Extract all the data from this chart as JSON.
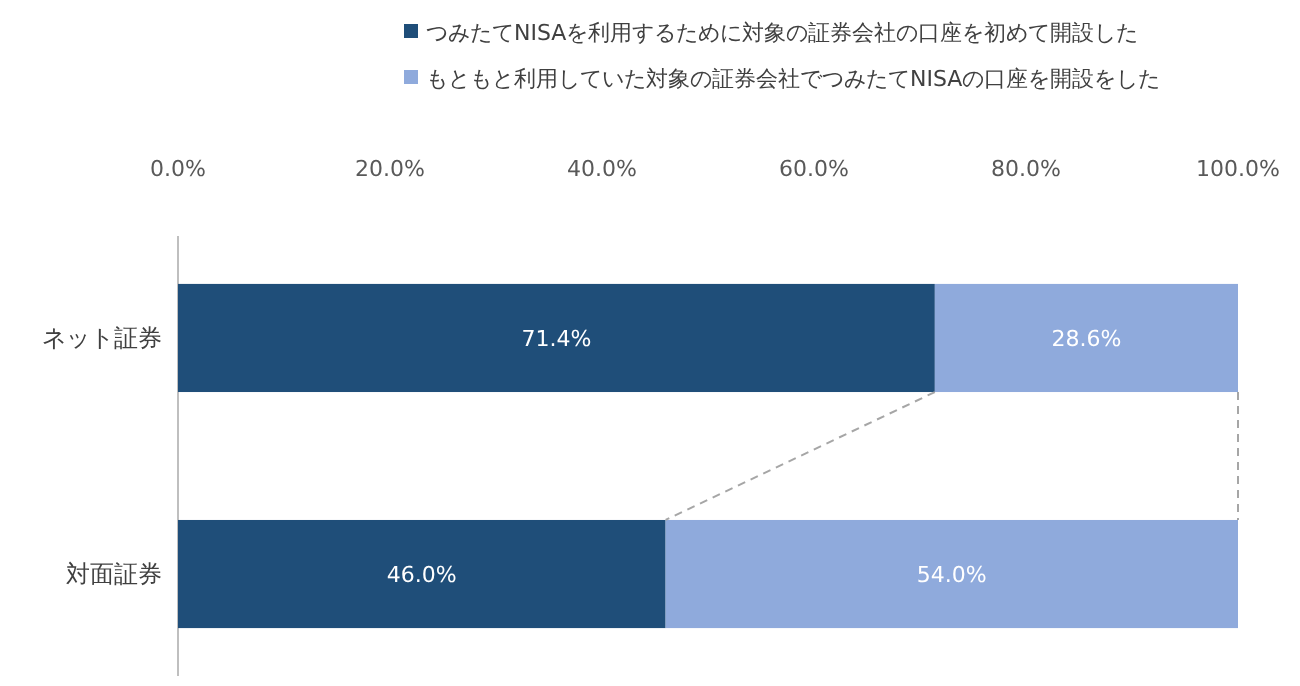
{
  "chart_data": {
    "type": "bar",
    "orientation": "horizontal",
    "stacked": true,
    "categories": [
      "ネット証券",
      "対面証券"
    ],
    "series": [
      {
        "name": "つみたてNISAを利用するために対象の証券会社の口座を初めて開設した",
        "color": "#1f4e79",
        "values": [
          71.4,
          46.0
        ],
        "value_labels": [
          "71.4%",
          "46.0%"
        ]
      },
      {
        "name": "もともと利用していた対象の証券会社でつみたてNISAの口座を開設をした",
        "color": "#8faadc",
        "values": [
          28.6,
          54.0
        ],
        "value_labels": [
          "28.6%",
          "54.0%"
        ]
      }
    ],
    "xlim": [
      0,
      100
    ],
    "xticks": [
      {
        "value": 0,
        "label": "0.0%"
      },
      {
        "value": 20,
        "label": "20.0%"
      },
      {
        "value": 40,
        "label": "40.0%"
      },
      {
        "value": 60,
        "label": "60.0%"
      },
      {
        "value": 80,
        "label": "80.0%"
      },
      {
        "value": 100,
        "label": "100.0%"
      }
    ],
    "legend": "top",
    "grid": false
  }
}
